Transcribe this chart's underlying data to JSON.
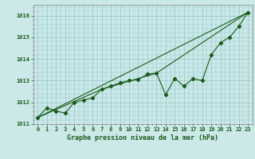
{
  "title": "Graphe pression niveau de la mer (hPa)",
  "bg_color": "#cce8e8",
  "grid_color": "#99cccc",
  "line_color": "#1a5c1a",
  "xlim": [
    -0.5,
    23.5
  ],
  "ylim": [
    1011.0,
    1016.5
  ],
  "yticks": [
    1011,
    1012,
    1013,
    1014,
    1015,
    1016
  ],
  "xticks": [
    0,
    1,
    2,
    3,
    4,
    5,
    6,
    7,
    8,
    9,
    10,
    11,
    12,
    13,
    14,
    15,
    16,
    17,
    18,
    19,
    20,
    21,
    22,
    23
  ],
  "series1_x": [
    0,
    1,
    2,
    3,
    4,
    5,
    6,
    7,
    8,
    9,
    10,
    11,
    12,
    13,
    14,
    15,
    16,
    17,
    18,
    19,
    20,
    21,
    22,
    23
  ],
  "series1_y": [
    1011.3,
    1011.75,
    1011.6,
    1011.5,
    1012.0,
    1012.1,
    1012.2,
    1012.6,
    1012.75,
    1012.9,
    1013.0,
    1013.05,
    1013.3,
    1013.35,
    1012.35,
    1013.1,
    1012.75,
    1013.1,
    1013.0,
    1014.2,
    1014.75,
    1015.0,
    1015.5,
    1016.15
  ],
  "series2_x": [
    0,
    23
  ],
  "series2_y": [
    1011.3,
    1016.15
  ],
  "series3_x": [
    0,
    7,
    13,
    23
  ],
  "series3_y": [
    1011.3,
    1012.6,
    1013.35,
    1016.15
  ],
  "marker": "D",
  "marker_size": 2.2,
  "linewidth": 0.8,
  "tick_fontsize": 5.0,
  "label_fontsize": 6.0
}
